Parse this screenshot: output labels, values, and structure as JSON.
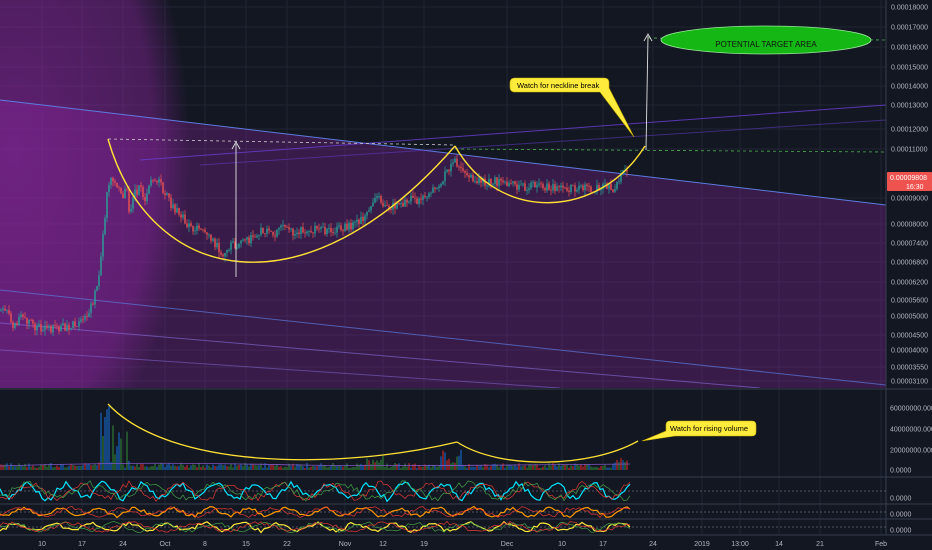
{
  "chart_data": {
    "type": "candlestick",
    "price_axis": {
      "scale": "log",
      "ticks": [
        "0.00018000",
        "0.00017000",
        "0.00016000",
        "0.00015000",
        "0.00014000",
        "0.00013000",
        "0.00012000",
        "0.00011000",
        "0.00009000",
        "0.00008000",
        "0.00007400",
        "0.00006800",
        "0.00006200",
        "0.00005600",
        "0.00005000",
        "0.00004500",
        "0.00004000",
        "0.00003550",
        "0.00003100"
      ],
      "last_price": "0.00009808",
      "countdown": "16:30"
    },
    "volume_axis": {
      "ticks": [
        "60000000.0000",
        "40000000.0000",
        "20000000.0000",
        "0.0000"
      ]
    },
    "indicator_axes": [
      "0.0000",
      "0.0000",
      "0.0000"
    ],
    "time_axis": {
      "ticks": [
        "10",
        "17",
        "24",
        "Oct",
        "8",
        "15",
        "22",
        "Nov",
        "12",
        "19",
        "Dec",
        "10",
        "17",
        "24",
        "2019",
        "13:00",
        "14",
        "21",
        "Feb"
      ]
    },
    "price_path": [
      [
        0,
        4.55e-05
      ],
      [
        8,
        4.46e-05
      ],
      [
        14,
        4.18e-05
      ],
      [
        20,
        4.38e-05
      ],
      [
        28,
        4.28e-05
      ],
      [
        36,
        4.16e-05
      ],
      [
        46,
        4.1e-05
      ],
      [
        56,
        4.13e-05
      ],
      [
        66,
        4.17e-05
      ],
      [
        76,
        4.22e-05
      ],
      [
        84,
        4.28e-05
      ],
      [
        92,
        4.7e-05
      ],
      [
        97,
        5.15e-05
      ],
      [
        101,
        6e-05
      ],
      [
        104,
        7.2e-05
      ],
      [
        107,
        8.6e-05
      ],
      [
        110,
        9.15e-05
      ],
      [
        114,
        9.35e-05
      ],
      [
        118,
        8.9e-05
      ],
      [
        122,
        8.35e-05
      ],
      [
        126,
        9.15e-05
      ],
      [
        130,
        7.6e-05
      ],
      [
        134,
        8.6e-05
      ],
      [
        140,
        8.9e-05
      ],
      [
        146,
        8.3e-05
      ],
      [
        150,
        9.05e-05
      ],
      [
        154,
        9.45e-05
      ],
      [
        160,
        9.1e-05
      ],
      [
        166,
        8.6e-05
      ],
      [
        172,
        8e-05
      ],
      [
        180,
        7.75e-05
      ],
      [
        188,
        7.2e-05
      ],
      [
        196,
        7.12e-05
      ],
      [
        204,
        6.9e-05
      ],
      [
        212,
        6.7e-05
      ],
      [
        220,
        6.35e-05
      ],
      [
        226,
        6.1e-05
      ],
      [
        231,
        6.65e-05
      ],
      [
        236,
        6.4e-05
      ],
      [
        242,
        6.9e-05
      ],
      [
        248,
        6.65e-05
      ],
      [
        254,
        6.9e-05
      ],
      [
        262,
        7.05e-05
      ],
      [
        272,
        6.9e-05
      ],
      [
        282,
        7.12e-05
      ],
      [
        292,
        7e-05
      ],
      [
        302,
        7.06e-05
      ],
      [
        312,
        7.1e-05
      ],
      [
        322,
        7.05e-05
      ],
      [
        334,
        7.1e-05
      ],
      [
        344,
        7.18e-05
      ],
      [
        356,
        7.3e-05
      ],
      [
        366,
        7.6e-05
      ],
      [
        372,
        8e-05
      ],
      [
        378,
        8.5e-05
      ],
      [
        382,
        7.9e-05
      ],
      [
        390,
        8e-05
      ],
      [
        400,
        8.1e-05
      ],
      [
        410,
        8.4e-05
      ],
      [
        420,
        8.2e-05
      ],
      [
        426,
        8.6e-05
      ],
      [
        432,
        8.8e-05
      ],
      [
        440,
        9.2e-05
      ],
      [
        446,
        9.6e-05
      ],
      [
        450,
        9.9e-05
      ],
      [
        454,
        0.0001045
      ],
      [
        458,
        9.75e-05
      ],
      [
        464,
        9.9e-05
      ],
      [
        470,
        9.45e-05
      ],
      [
        478,
        9.3e-05
      ],
      [
        486,
        9.15e-05
      ],
      [
        494,
        9.25e-05
      ],
      [
        502,
        9.08e-05
      ],
      [
        510,
        9.05e-05
      ],
      [
        518,
        8.98e-05
      ],
      [
        526,
        8.95e-05
      ],
      [
        534,
        9e-05
      ],
      [
        544,
        8.95e-05
      ],
      [
        554,
        8.9e-05
      ],
      [
        564,
        8.8e-05
      ],
      [
        574,
        8.9e-05
      ],
      [
        584,
        8.93e-05
      ],
      [
        594,
        8.85e-05
      ],
      [
        604,
        8.98e-05
      ],
      [
        614,
        8.85e-05
      ],
      [
        618,
        9.2e-05
      ],
      [
        622,
        9.55e-05
      ],
      [
        627,
        9.85e-05
      ]
    ],
    "annotations": [
      {
        "text": "Watch for neckline break",
        "panel": "price"
      },
      {
        "text": "POTENTIAL TARGET AREA",
        "panel": "price"
      },
      {
        "text": "Watch for rising volume",
        "panel": "volume"
      }
    ],
    "colors": {
      "background": "#131722",
      "up": "#26a69a",
      "down": "#ef5350",
      "overlay": "#9c27b0",
      "cup_curve": "#ffe135",
      "target_area": "#14b714",
      "price_label": "#ef5350"
    }
  }
}
